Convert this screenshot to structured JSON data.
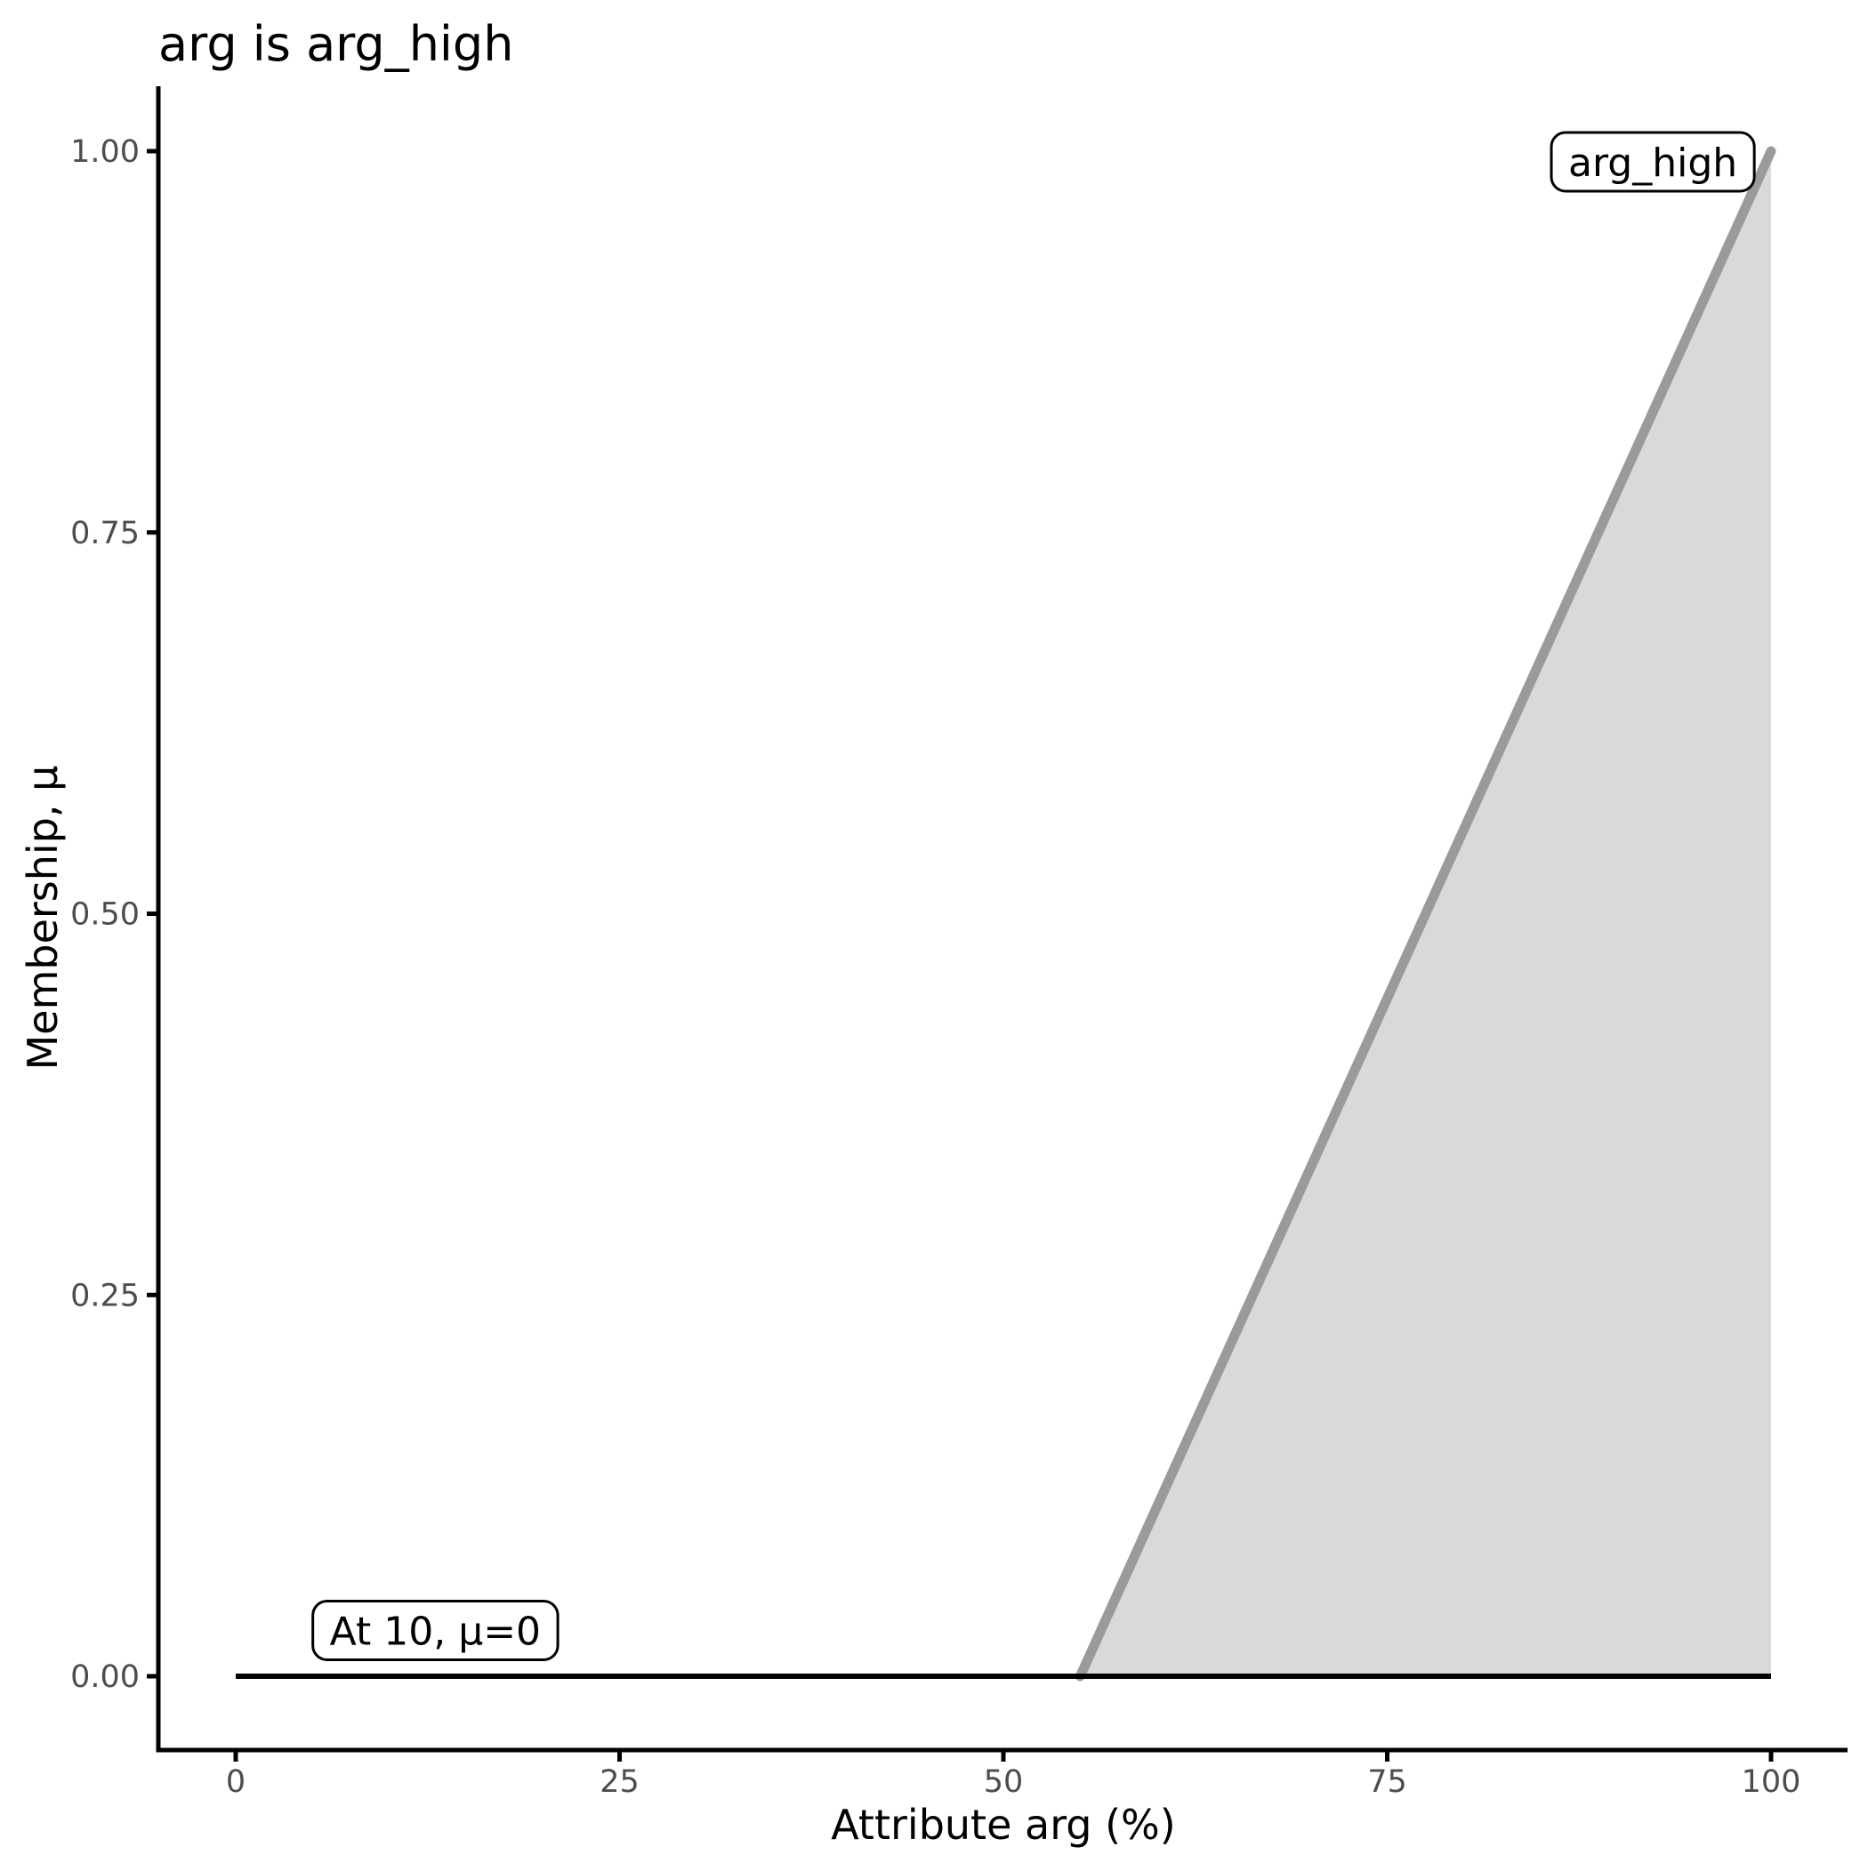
{
  "title": "arg is arg_high",
  "chart_data": {
    "type": "area",
    "title": "arg is arg_high",
    "xlabel": "Attribute arg (%)",
    "ylabel": "Membership, μ",
    "xlim": [
      0,
      100
    ],
    "ylim": [
      0,
      1
    ],
    "grid": false,
    "legend": "none",
    "x_ticks": {
      "values": [
        0,
        25,
        50,
        75,
        100
      ],
      "labels": [
        "0",
        "25",
        "50",
        "75",
        "100"
      ]
    },
    "y_ticks": {
      "values": [
        0,
        0.25,
        0.5,
        0.75,
        1.0
      ],
      "labels": [
        "0.00",
        "0.25",
        "0.50",
        "0.75",
        "1.00"
      ]
    },
    "series": [
      {
        "name": "arg_high membership function",
        "type": "area",
        "line_color": "#9A9A9A",
        "fill_color": "#D9D9D9",
        "points": [
          [
            55,
            0
          ],
          [
            100,
            1
          ]
        ],
        "baseline": 0
      },
      {
        "name": "membership at input value",
        "type": "line",
        "line_color": "#000000",
        "points": [
          [
            0,
            0
          ],
          [
            100,
            0
          ]
        ]
      }
    ],
    "annotations": [
      {
        "text": "arg_high",
        "x": 92.3,
        "y": 0.993
      },
      {
        "text": "At 10, μ=0",
        "x": 13.0,
        "y": 0.03
      }
    ]
  },
  "colors": {
    "background": "#FFFFFF",
    "axis": "#000000",
    "tick_label": "#4D4D4D",
    "title_text": "#000000",
    "axis_title_text": "#000000",
    "membership_line": "#9A9A9A",
    "membership_fill": "#D9D9D9",
    "input_line": "#000000",
    "annotation_border": "#000000",
    "annotation_fill": "#FFFFFF",
    "annotation_text": "#000000"
  }
}
